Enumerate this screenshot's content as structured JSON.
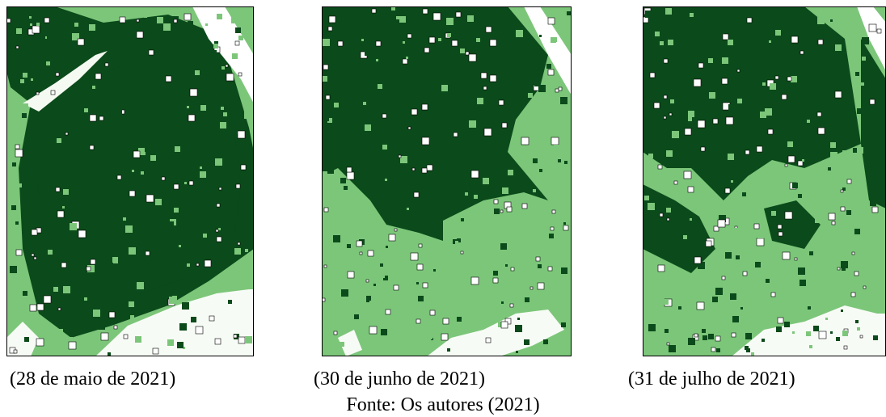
{
  "figure": {
    "captions": [
      "(28 de maio de 2021)",
      "(30 de junho de 2021)",
      "(31 de julho de 2021)"
    ],
    "source": "Fonte: Os autores (2021)"
  }
}
